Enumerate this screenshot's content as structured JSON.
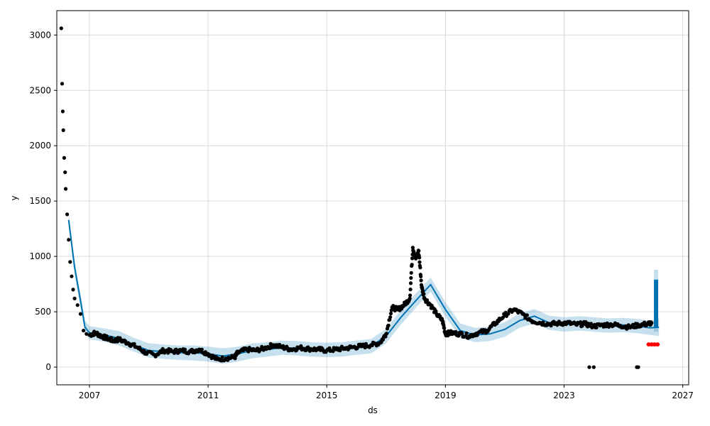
{
  "chart_data": {
    "type": "line",
    "title": "",
    "xlabel": "ds",
    "ylabel": "y",
    "xlim": [
      2005.9,
      2027.2
    ],
    "ylim": [
      -160,
      3220
    ],
    "grid": true,
    "x_ticks": [
      2007,
      2011,
      2015,
      2019,
      2023,
      2027
    ],
    "x_tick_labels": [
      "2007",
      "2011",
      "2015",
      "2019",
      "2023",
      "2027"
    ],
    "y_ticks": [
      0,
      500,
      1000,
      1500,
      2000,
      2500,
      3000
    ],
    "y_tick_labels": [
      "0",
      "500",
      "1000",
      "1500",
      "2000",
      "2500",
      "3000"
    ],
    "colors": {
      "observed": "#000000",
      "forecast_line": "#0072B2",
      "uncertainty_band": "#0072B2",
      "highlight": "#ff0000",
      "grid": "#d9d9d9"
    },
    "forecast": {
      "x": [
        2006.3,
        2006.5,
        2006.7,
        2006.85,
        2007.0,
        2007.5,
        2008.0,
        2008.5,
        2009.0,
        2009.5,
        2010.0,
        2010.5,
        2011.0,
        2011.5,
        2012.0,
        2012.5,
        2013.0,
        2013.5,
        2014.0,
        2014.5,
        2015.0,
        2015.5,
        2016.0,
        2016.5,
        2017.0,
        2017.5,
        2018.0,
        2018.5,
        2019.0,
        2019.5,
        2020.0,
        2020.5,
        2021.0,
        2021.5,
        2022.0,
        2022.5,
        2023.0,
        2023.5,
        2024.0,
        2024.5,
        2025.0,
        2025.5,
        2025.9,
        2026.2
      ],
      "yhat": [
        1330,
        900,
        600,
        360,
        310,
        290,
        260,
        200,
        150,
        140,
        130,
        130,
        120,
        100,
        120,
        150,
        160,
        175,
        170,
        160,
        155,
        160,
        175,
        190,
        280,
        450,
        600,
        745,
        520,
        330,
        290,
        300,
        340,
        420,
        460,
        400,
        385,
        395,
        385,
        375,
        380,
        370,
        355,
        360
      ],
      "yhat_lower": [
        1270,
        840,
        540,
        300,
        250,
        230,
        195,
        140,
        85,
        75,
        65,
        60,
        50,
        30,
        50,
        80,
        95,
        110,
        105,
        95,
        90,
        95,
        110,
        125,
        215,
        385,
        535,
        680,
        455,
        265,
        225,
        235,
        275,
        355,
        395,
        335,
        320,
        330,
        320,
        310,
        315,
        305,
        290,
        280
      ],
      "yhat_upper": [
        1390,
        960,
        660,
        420,
        370,
        350,
        325,
        265,
        215,
        205,
        195,
        195,
        185,
        170,
        185,
        215,
        225,
        240,
        235,
        225,
        220,
        225,
        240,
        255,
        345,
        515,
        665,
        810,
        585,
        395,
        355,
        365,
        405,
        485,
        525,
        465,
        450,
        460,
        450,
        440,
        445,
        435,
        420,
        440
      ]
    },
    "forecast_spike": {
      "x": 2026.1,
      "ylow": 360,
      "yhigh": 790,
      "band_low": 320,
      "band_high": 880
    },
    "observed_sample": {
      "x": [
        2006.05,
        2006.08,
        2006.1,
        2006.12,
        2006.15,
        2006.18,
        2006.2,
        2006.25,
        2006.3,
        2006.35,
        2006.4,
        2006.45,
        2006.5,
        2006.6,
        2006.7,
        2006.8,
        2006.9,
        2007.0,
        2007.2,
        2007.4,
        2007.6,
        2007.8,
        2008.0,
        2008.3,
        2008.6,
        2008.9,
        2009.2,
        2009.5,
        2009.8,
        2010.1,
        2010.4,
        2010.7,
        2011.0,
        2011.3,
        2011.6,
        2011.9,
        2012.0,
        2012.3,
        2012.6,
        2012.9,
        2013.2,
        2013.5,
        2013.8,
        2014.1,
        2014.4,
        2014.7,
        2015.0,
        2015.3,
        2015.6,
        2015.9,
        2016.2,
        2016.5,
        2016.8,
        2017.0,
        2017.2,
        2017.4,
        2017.6,
        2017.8,
        2017.9,
        2018.0,
        2018.1,
        2018.2,
        2018.3,
        2018.5,
        2018.7,
        2018.9,
        2019.0,
        2019.2,
        2019.5,
        2019.8,
        2020.1,
        2020.4,
        2020.7,
        2021.0,
        2021.3,
        2021.6,
        2021.9,
        2022.2,
        2022.5,
        2022.8,
        2023.1,
        2023.4,
        2023.7,
        2024.0,
        2024.3,
        2024.6,
        2024.9,
        2025.2,
        2025.5,
        2025.8,
        2025.95
      ],
      "y": [
        3060,
        2560,
        2310,
        2140,
        1890,
        1760,
        1610,
        1380,
        1150,
        950,
        820,
        700,
        620,
        560,
        480,
        330,
        300,
        290,
        310,
        280,
        260,
        240,
        250,
        220,
        180,
        130,
        110,
        150,
        140,
        150,
        140,
        160,
        120,
        70,
        80,
        90,
        130,
        160,
        150,
        170,
        200,
        180,
        160,
        175,
        165,
        160,
        150,
        160,
        170,
        180,
        190,
        200,
        220,
        300,
        540,
        520,
        560,
        620,
        1080,
        980,
        1050,
        720,
        620,
        560,
        480,
        420,
        300,
        310,
        300,
        280,
        310,
        330,
        400,
        470,
        520,
        480,
        420,
        400,
        390,
        395,
        400,
        385,
        390,
        370,
        380,
        385,
        375,
        360,
        380,
        390,
        400
      ]
    },
    "outliers": {
      "x": [
        2023.85,
        2024.0,
        2025.45,
        2025.5
      ],
      "y": [
        0,
        0,
        0,
        0
      ]
    },
    "highlight_points": {
      "x": [
        2025.85,
        2025.95,
        2026.05,
        2026.15
      ],
      "y": [
        205,
        205,
        205,
        205
      ]
    }
  }
}
